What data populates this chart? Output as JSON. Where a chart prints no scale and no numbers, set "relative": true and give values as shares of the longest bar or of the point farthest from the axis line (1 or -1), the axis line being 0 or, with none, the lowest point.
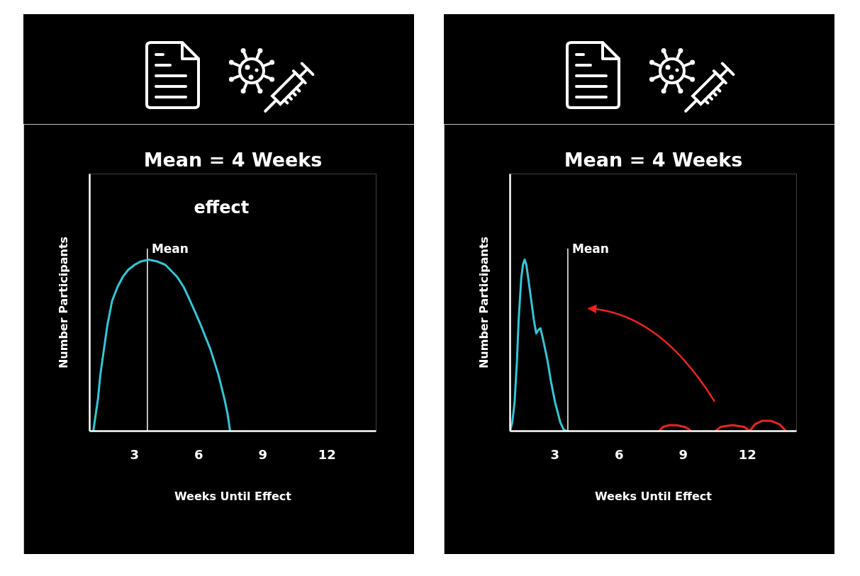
{
  "chart_data": [
    {
      "type": "line",
      "title": "Mean = 4 Weeks",
      "xlabel": "Weeks Until Effect",
      "ylabel": "Number Participants",
      "relative": true,
      "xlim": [
        0.9,
        14.3
      ],
      "xticks": [
        3,
        6,
        9,
        12
      ],
      "tick_labels": "x",
      "series": [
        {
          "color": "#36c5d6",
          "x": [
            1.07,
            1.29,
            1.4,
            1.57,
            1.73,
            1.95,
            2.2,
            2.45,
            2.7,
            3.0,
            3.3,
            3.67,
            4.05,
            4.44,
            4.99,
            5.3,
            5.6,
            5.85,
            6.09,
            6.54,
            6.92,
            7.2,
            7.35,
            7.47
          ],
          "values": [
            0,
            0.19,
            0.33,
            0.48,
            0.62,
            0.76,
            0.84,
            0.9,
            0.94,
            0.97,
            0.99,
            1,
            0.99,
            0.97,
            0.9,
            0.84,
            0.76,
            0.69,
            0.62,
            0.48,
            0.33,
            0.19,
            0.1,
            0
          ]
        }
      ],
      "ref_lines": [
        {
          "axis": "x",
          "value": 3.6,
          "label": "Mean",
          "color": "#ffffff"
        }
      ],
      "annotations": [
        "effect"
      ]
    },
    {
      "type": "line",
      "title": "Mean = 4 Weeks",
      "xlabel": "Weeks Until Effect",
      "ylabel": "Number Participants",
      "relative": true,
      "xlim": [
        0.9,
        14.3
      ],
      "xticks": [
        3,
        6,
        9,
        12
      ],
      "tick_labels": "x",
      "series": [
        {
          "color": "#36c5d6",
          "x": [
            0.9,
            1.0,
            1.11,
            1.22,
            1.3,
            1.42,
            1.5,
            1.58,
            1.66,
            1.75,
            1.88,
            2.01,
            2.12,
            2.22,
            2.32,
            2.45,
            2.65,
            2.81,
            3.0,
            3.25,
            3.4,
            3.55
          ],
          "values": [
            0,
            0.05,
            0.17,
            0.41,
            0.65,
            0.89,
            0.97,
            1,
            0.97,
            0.89,
            0.77,
            0.65,
            0.57,
            0.59,
            0.6,
            0.53,
            0.41,
            0.29,
            0.17,
            0.05,
            0.01,
            0
          ]
        },
        {
          "color": "#e8261e",
          "x": [
            7.87,
            8.05,
            8.35,
            8.7,
            9.05,
            9.25,
            9.36,
            9.9,
            10.51,
            10.75,
            11.3,
            11.85,
            12.11,
            12.35,
            12.7,
            13.1,
            13.5,
            13.81
          ],
          "values": [
            0,
            0.025,
            0.035,
            0.034,
            0.025,
            0.012,
            0,
            null,
            0,
            0.025,
            0.035,
            0.025,
            0,
            0.04,
            0.06,
            0.06,
            0.04,
            0
          ]
        }
      ],
      "ref_lines": [
        {
          "axis": "x",
          "value": 3.6,
          "label": "Mean",
          "color": "#ffffff"
        }
      ]
    }
  ]
}
